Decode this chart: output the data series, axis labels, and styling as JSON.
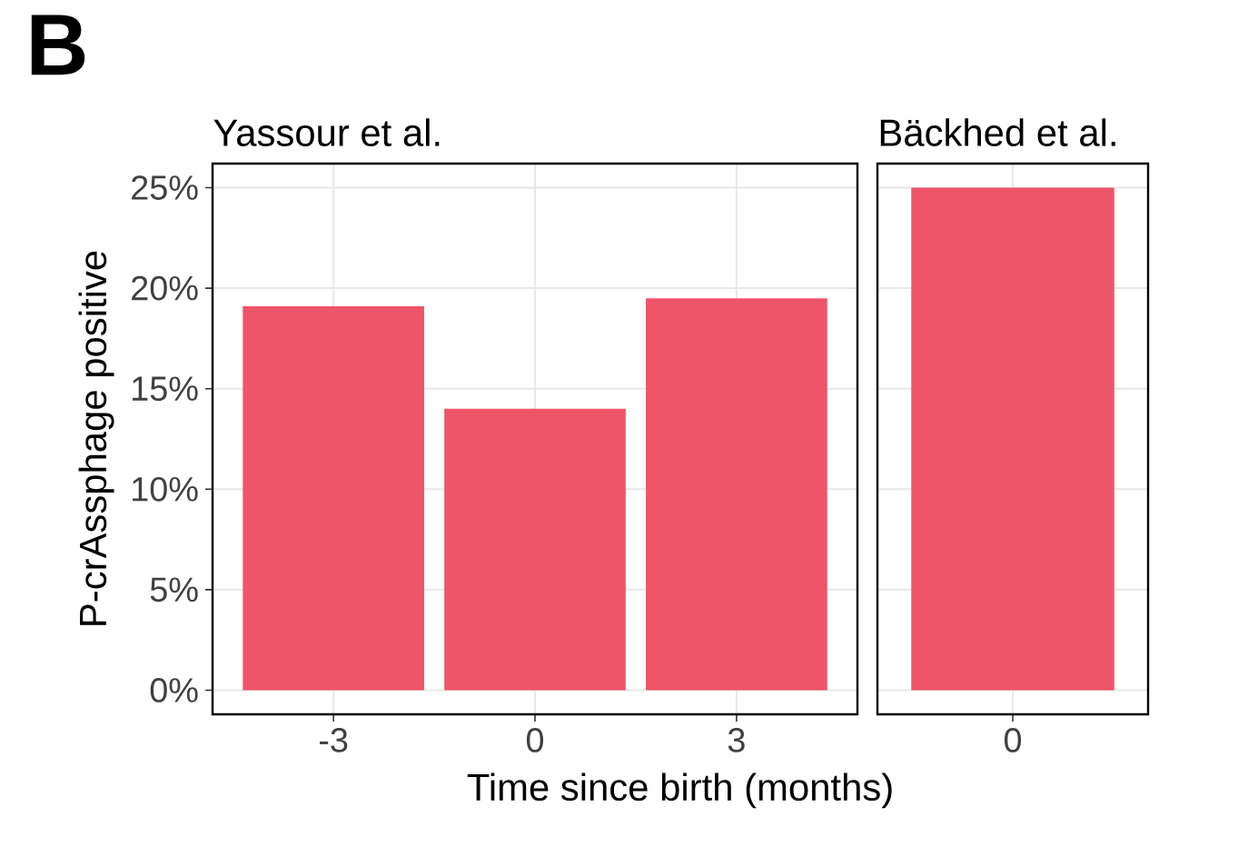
{
  "chart_data": [
    {
      "type": "bar",
      "title": "Yassour et al.",
      "xlabel": "Time since birth (months)",
      "ylabel": "P-crAssphage positive",
      "annotations": [
        "**B**"
      ],
      "categories": [
        "-3",
        "0",
        "3"
      ],
      "values": [
        19.1,
        14.0,
        19.5
      ],
      "color": "#ef5568",
      "ylim": [
        -1.2,
        26.2
      ],
      "yticks": [
        {
          "value": 0,
          "label": "0%"
        },
        {
          "value": 5,
          "label": "5%"
        },
        {
          "value": 10,
          "label": "10%"
        },
        {
          "value": 15,
          "label": "15%"
        },
        {
          "value": 20,
          "label": "20%"
        },
        {
          "value": 25,
          "label": "25%"
        }
      ],
      "grid": true
    },
    {
      "type": "bar",
      "title": "Bäckhed et al.",
      "categories": [
        "0"
      ],
      "values": [
        25.0
      ],
      "color": "#ef5568",
      "ylim": [
        -1.2,
        26.2
      ],
      "yticks": [
        {
          "value": 0,
          "label": null
        },
        {
          "value": 5,
          "label": null
        },
        {
          "value": 10,
          "label": null
        },
        {
          "value": 15,
          "label": null
        },
        {
          "value": 20,
          "label": null
        },
        {
          "value": 25,
          "label": null
        }
      ],
      "grid": true,
      "tick_labels": "x"
    }
  ]
}
